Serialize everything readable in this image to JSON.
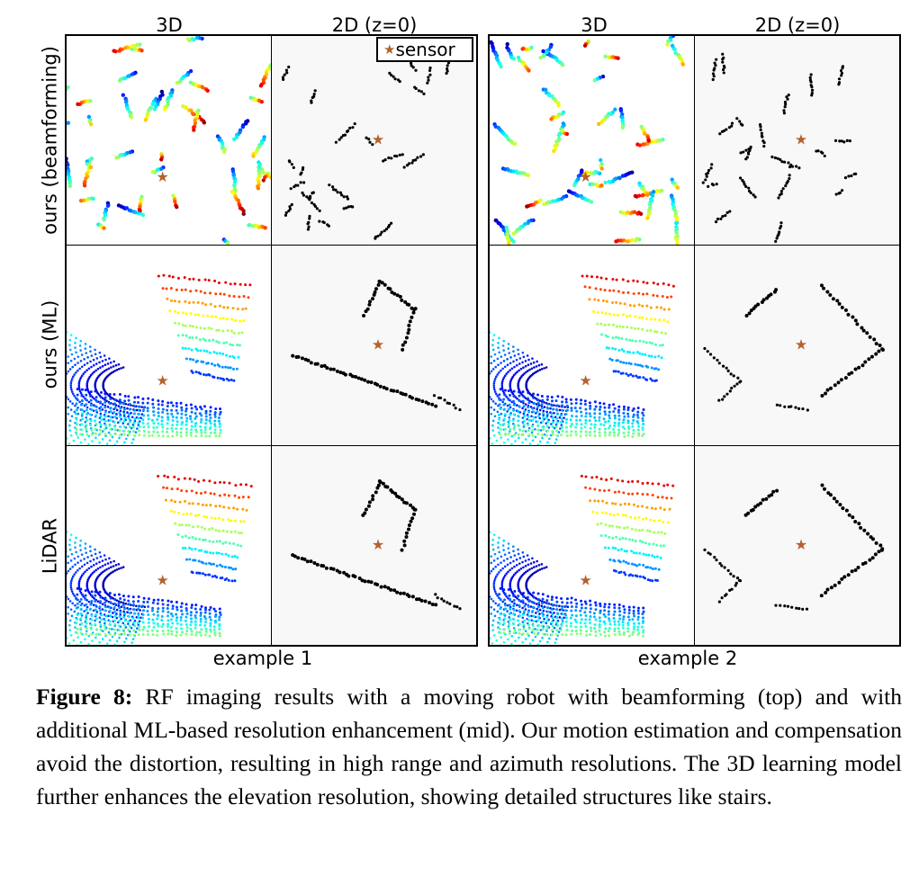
{
  "figure": {
    "column_headers": [
      "3D",
      "2D (z=0)",
      "3D",
      "2D (z=0)"
    ],
    "row_labels": [
      "ours (beamforming)",
      "ours (ML)",
      "LiDAR"
    ],
    "example_labels": [
      "example 1",
      "example 2"
    ],
    "legend": {
      "marker": "★",
      "label": "sensor"
    },
    "colors": {
      "sensor_star": "#b4622e",
      "points_2d": "#000000",
      "panel_bg_2d": "#f8f8f8"
    }
  },
  "caption": {
    "label": "Figure 8:",
    "text": " RF imaging results with a moving robot with beamforming (top) and with additional ML-based resolution enhancement (mid). Our motion estimation and compensation avoid the distortion, resulting in high range and azimuth resolutions. The 3D learning model further enhances the elevation resolution, showing detailed structures like stairs."
  }
}
